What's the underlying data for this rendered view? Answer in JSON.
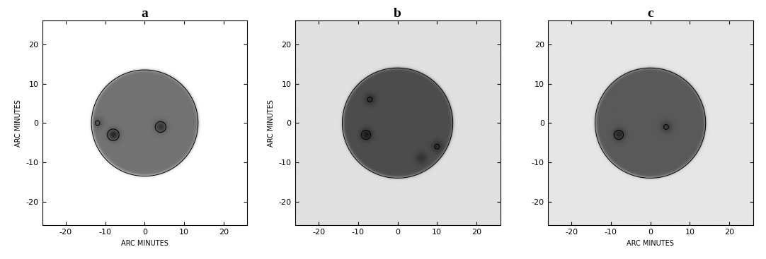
{
  "chart_data": [
    {
      "type": "image",
      "title": "a",
      "xlabel": "ARC MINUTES",
      "ylabel": "ARC MINUTES",
      "xlim": [
        -26,
        26
      ],
      "ylim": [
        -26,
        26
      ],
      "xticks": [
        -20,
        -10,
        0,
        10,
        20
      ],
      "yticks": [
        -20,
        -10,
        0,
        10,
        20
      ],
      "background_intensity": 0.0,
      "disk_radius": 13.5,
      "disk_intensity": 0.55,
      "spots": [
        {
          "x": -8,
          "y": -3,
          "intensity": 0.3
        },
        {
          "x": 4,
          "y": -1,
          "intensity": 0.25
        },
        {
          "x": -12,
          "y": 0,
          "intensity": 0.12
        }
      ]
    },
    {
      "type": "image",
      "title": "b",
      "ylabel": "ARC MINUTES",
      "xlim": [
        -26,
        26
      ],
      "ylim": [
        -26,
        26
      ],
      "xticks": [
        -20,
        -10,
        0,
        10,
        20
      ],
      "yticks": [
        -20,
        -10,
        0,
        10,
        20
      ],
      "background_intensity": 0.12,
      "disk_radius": 14,
      "disk_intensity": 0.7,
      "spots": [
        {
          "x": -8,
          "y": -3,
          "intensity": 0.2
        },
        {
          "x": -7,
          "y": 6,
          "intensity": 0.12
        },
        {
          "x": 10,
          "y": -6,
          "intensity": 0.12
        },
        {
          "x": 6,
          "y": -9,
          "intensity": 0.1
        }
      ]
    },
    {
      "type": "image",
      "title": "c",
      "xlabel": "ARC MINUTES",
      "xlim": [
        -26,
        26
      ],
      "ylim": [
        -26,
        26
      ],
      "xticks": [
        -20,
        -10,
        0,
        10,
        20
      ],
      "yticks": [
        -20,
        -10,
        0,
        10,
        20
      ],
      "background_intensity": 0.1,
      "disk_radius": 14,
      "disk_intensity": 0.65,
      "spots": [
        {
          "x": -8,
          "y": -3,
          "intensity": 0.2
        },
        {
          "x": 4,
          "y": -1,
          "intensity": 0.12
        }
      ]
    }
  ]
}
